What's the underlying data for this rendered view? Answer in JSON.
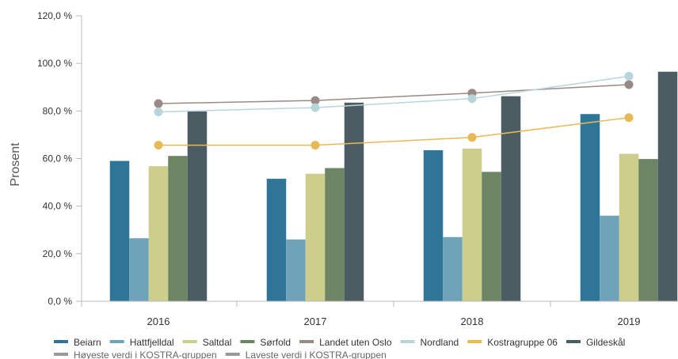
{
  "chart_data": {
    "type": "bar",
    "categories": [
      "2016",
      "2017",
      "2018",
      "2019"
    ],
    "ylabel": "Prosent",
    "ylim": [
      0,
      120
    ],
    "yticks": [
      "0,0 %",
      "20,0 %",
      "40,0 %",
      "60,0 %",
      "80,0 %",
      "100,0 %",
      "120,0 %"
    ],
    "grid": false,
    "legend_position": "bottom",
    "bar_series": [
      {
        "name": "Beiarn",
        "color": "#2e7597",
        "values": [
          59,
          51.5,
          63.5,
          78.7
        ]
      },
      {
        "name": "Hattfjelldal",
        "color": "#6fa3b9",
        "values": [
          26.5,
          26,
          27,
          36
        ]
      },
      {
        "name": "Saltdal",
        "color": "#cdcd8c",
        "values": [
          56.8,
          53.6,
          64.2,
          62
        ]
      },
      {
        "name": "Sørfold",
        "color": "#6d8465",
        "values": [
          61.1,
          56,
          54.4,
          59.8
        ]
      },
      {
        "name": "Gildeskål",
        "color": "#4b5c63",
        "values": [
          79.8,
          83.5,
          86.2,
          96.5
        ]
      }
    ],
    "line_series": [
      {
        "name": "Landet uten Oslo",
        "color": "#998a86",
        "values": [
          83.1,
          84.4,
          87.5,
          91.1
        ]
      },
      {
        "name": "Nordland",
        "color": "#b9d5dc",
        "values": [
          79.6,
          81.4,
          85.2,
          94.6
        ]
      },
      {
        "name": "Kostragruppe 06",
        "color": "#e8ba56",
        "values": [
          65.6,
          65.6,
          68.9,
          77.2
        ]
      }
    ],
    "legend": [
      {
        "name": "Beiarn",
        "color": "#2e7597"
      },
      {
        "name": "Hattfjelldal",
        "color": "#6fa3b9"
      },
      {
        "name": "Saltdal",
        "color": "#cdcd8c"
      },
      {
        "name": "Sørfold",
        "color": "#6d8465"
      },
      {
        "name": "Landet uten Oslo",
        "color": "#998a86"
      },
      {
        "name": "Nordland",
        "color": "#b9d5dc"
      },
      {
        "name": "Kostragruppe 06",
        "color": "#e8ba56"
      },
      {
        "name": "Gildeskål",
        "color": "#4b5c63"
      },
      {
        "name": "Høyeste verdi i KOSTRA-gruppen",
        "color": "#999999"
      },
      {
        "name": "Laveste verdi i KOSTRA-gruppen",
        "color": "#999999"
      }
    ]
  }
}
